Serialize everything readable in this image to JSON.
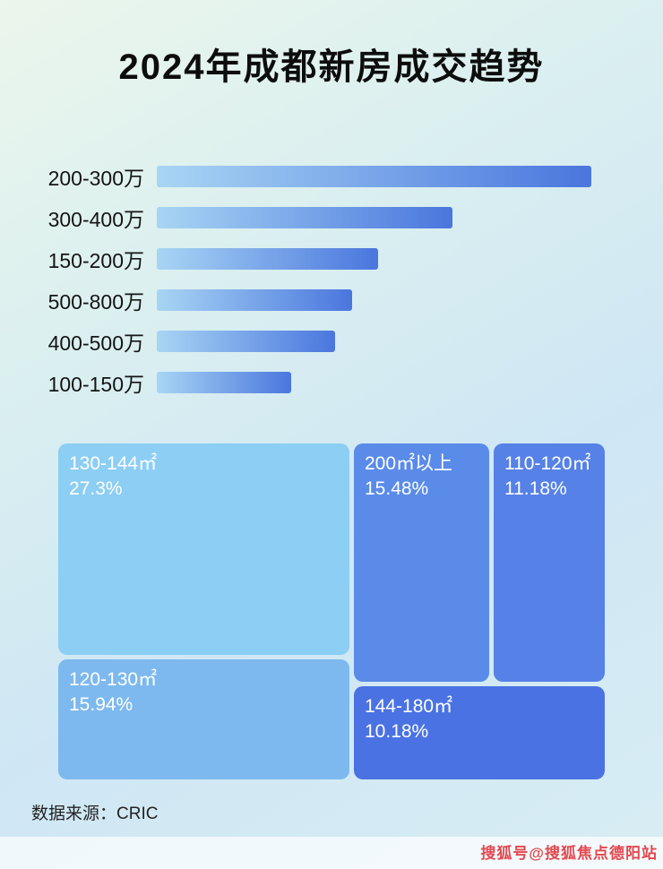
{
  "page": {
    "title": "2024年成都新房成交趋势",
    "footer_source": "数据来源：CRIC",
    "watermark": "搜狐号@搜狐焦点德阳站"
  },
  "chart_data": [
    {
      "type": "bar",
      "orientation": "horizontal",
      "title": "2024年成都新房成交趋势（按总价段）",
      "categories": [
        "200-300万",
        "300-400万",
        "150-200万",
        "500-800万",
        "400-500万",
        "100-150万"
      ],
      "values": [
        100,
        68,
        51,
        45,
        41,
        31
      ],
      "value_unit": "relative-length (no numeric labels shown in image)",
      "xlabel": "",
      "ylabel": "",
      "grid": false,
      "legend": false,
      "bar_gradient": [
        "#A8D5F4",
        "#4A76DE"
      ]
    },
    {
      "type": "treemap",
      "title": "按面积段成交占比",
      "items": [
        {
          "label": "130-144㎡",
          "value": 27.3,
          "display": "27.3%",
          "color": "#8CCEF4"
        },
        {
          "label": "120-130㎡",
          "value": 15.94,
          "display": "15.94%",
          "color": "#7DB9EE"
        },
        {
          "label": "200㎡以上",
          "value": 15.48,
          "display": "15.48%",
          "color": "#5A8BE9"
        },
        {
          "label": "110-120㎡",
          "value": 11.18,
          "display": "11.18%",
          "color": "#5681E7"
        },
        {
          "label": "144-180㎡",
          "value": 10.18,
          "display": "10.18%",
          "color": "#4A72E3"
        }
      ]
    }
  ]
}
